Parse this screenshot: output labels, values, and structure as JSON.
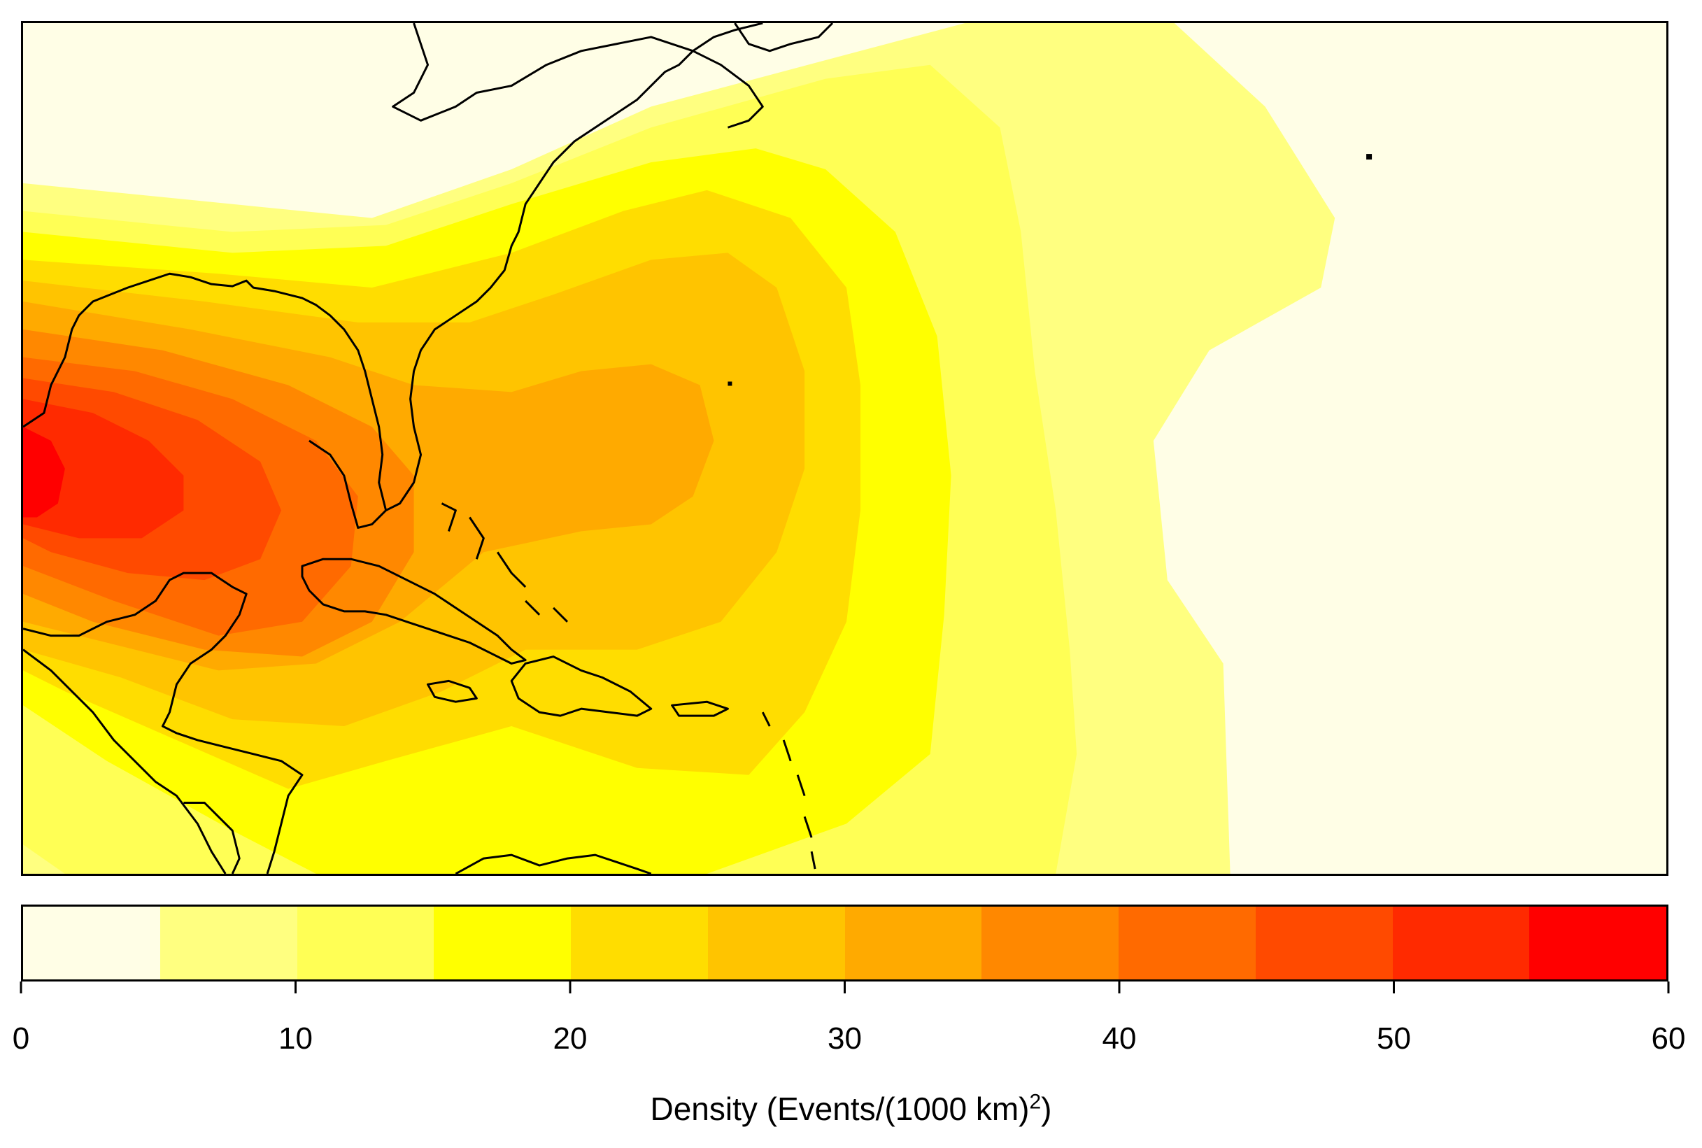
{
  "map": {
    "region": "North Atlantic / Gulf of Mexico / Caribbean",
    "background_color": "#FFFEE6",
    "coastline_color": "#000000"
  },
  "legend": {
    "title": "Density (Events/(1000 km)",
    "title_superscript": "2",
    "title_suffix": ")",
    "ticks": [
      "0",
      "10",
      "20",
      "30",
      "40",
      "50",
      "60"
    ],
    "range": [
      0,
      60
    ],
    "step": 5,
    "colors": [
      "#FFFEE6",
      "#FFFF80",
      "#FFFF55",
      "#FFFF00",
      "#FFDD00",
      "#FFC400",
      "#FFAA00",
      "#FF8800",
      "#FF6A00",
      "#FF4A00",
      "#FF2A00",
      "#FF0000"
    ]
  },
  "chart_data": {
    "type": "heatmap",
    "value_label": "Density (Events/(1000 km)²)",
    "scale_range": [
      0,
      60
    ],
    "bin_width": 5,
    "peak_regions": [
      {
        "area": "western Gulf of Mexico",
        "density_approx": 57
      },
      {
        "area": "central Gulf of Mexico",
        "density_approx": 45
      },
      {
        "area": "northwest Caribbean / south of Cuba",
        "density_approx": 40
      },
      {
        "area": "open Atlantic southwest of Bermuda",
        "density_approx": 32
      },
      {
        "area": "eastern Atlantic",
        "density_approx": 2
      }
    ]
  }
}
